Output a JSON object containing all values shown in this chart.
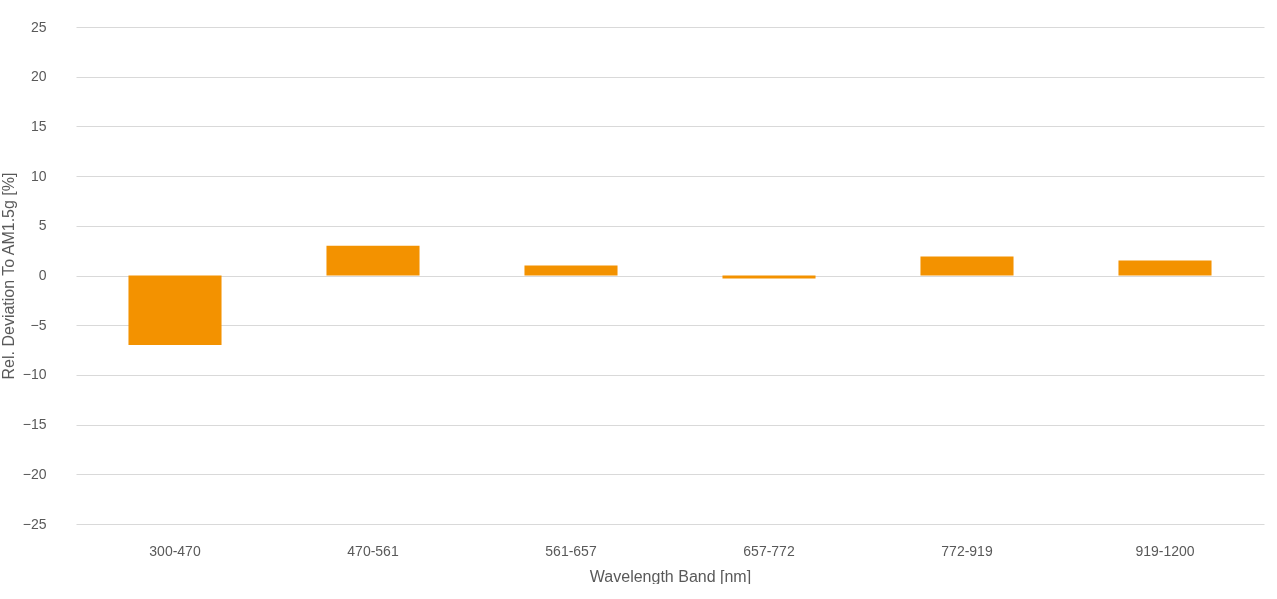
{
  "chart_data": {
    "type": "bar",
    "xlabel": "Wavelength Band [nm]",
    "ylabel": "Rel. Deviation To AM1.5g [%]",
    "categories": [
      "300-470",
      "470-561",
      "561-657",
      "657-772",
      "772-919",
      "919-1200"
    ],
    "values": [
      -7.0,
      3.0,
      1.0,
      -0.3,
      1.9,
      1.5
    ],
    "color": "#f39200",
    "ylim": [
      -25,
      25
    ],
    "yticks": [
      -25,
      -20,
      -15,
      -10,
      -5,
      0,
      5,
      10,
      15,
      20,
      25
    ],
    "grid": "y"
  }
}
